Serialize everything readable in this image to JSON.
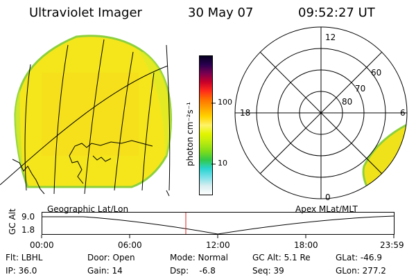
{
  "header": {
    "instrument": "Ultraviolet Imager",
    "date": "30 May 07",
    "time": "09:52:27 UT"
  },
  "colorbar": {
    "unit_label": "photon cm⁻²s⁻¹",
    "ticks": [
      "100",
      "10"
    ],
    "colors": [
      "#ffffff",
      "#d8eef0",
      "#7be0e8",
      "#29d4d0",
      "#33c94a",
      "#7fdc1a",
      "#b9ea10",
      "#e2f400",
      "#fff36a",
      "#ffd400",
      "#ffa200",
      "#ff7000",
      "#ff2a1a",
      "#c8002a",
      "#7a0050",
      "#2a0050",
      "#060020"
    ]
  },
  "map_panel": {
    "label": "Geographic Lat/Lon",
    "fill_color": "#f5e61c"
  },
  "polar_panel": {
    "label": "Apex MLat/MLT",
    "mlt_labels": [
      "12",
      "18",
      "6",
      "0"
    ],
    "mlat_labels": [
      "60",
      "70",
      "80"
    ]
  },
  "altitude_plot": {
    "ylabel": "GC Alt",
    "yticks": [
      "9.0",
      "1.8"
    ],
    "xticks": [
      "00:00",
      "06:00",
      "12:00",
      "18:00",
      "23:59"
    ],
    "marker_color": "#e02020"
  },
  "status": {
    "filter": "Flt: LBHL",
    "ip": "IP: 36.0",
    "door": "Door: Open",
    "gain": "Gain: 14",
    "mode": "Mode: Normal",
    "dsp": "Dsp:    -6.8",
    "gc_alt": "GC Alt: 5.1 Re",
    "seq": "Seq: 39",
    "glat": "GLat: -46.9",
    "glon": "GLon: 277.2"
  }
}
